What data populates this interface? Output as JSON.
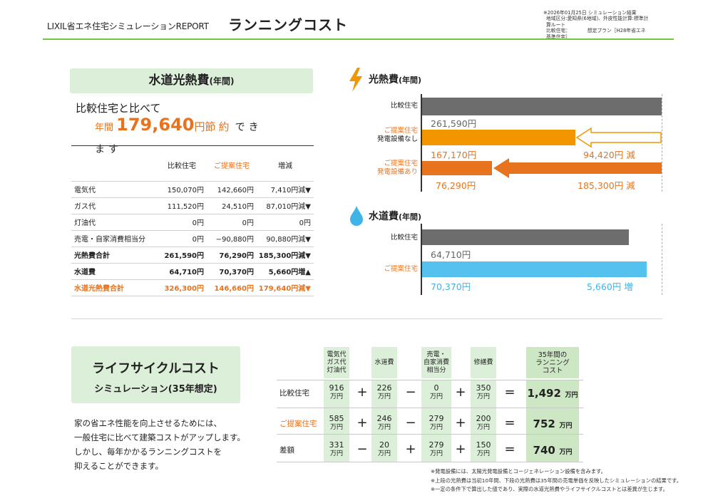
{
  "header": {
    "brand": "LIXIL省エネ住宅シミュレーションREPORT",
    "title": "ランニングコスト",
    "meta_lines": [
      "※2026年01月25日 シミュレーション結果",
      "地域区分:愛知県(6地域)、外皮性能計算:標準計",
      "算ルート",
      "比較住宅：　　　　想定プラン［H28年省エネ",
      "基準住宅］"
    ]
  },
  "utility": {
    "title": "水道光熱費",
    "title_suffix": "(年間)",
    "compare_text": "比較住宅と比べて",
    "annual_label": "年間",
    "saving_amount": "179,640",
    "saving_unit": "円",
    "saving_word": "節約",
    "can_text1": "でき",
    "can_text2": "ます",
    "table": {
      "headers": [
        "",
        "比較住宅",
        "ご提案住宅",
        "増減"
      ],
      "rows": [
        {
          "label": "電気代",
          "compare": "150,070円",
          "proposal": "142,660円",
          "diff": "7,410円減▼"
        },
        {
          "label": "ガス代",
          "compare": "111,520円",
          "proposal": "24,510円",
          "diff": "87,010円減▼"
        },
        {
          "label": "灯油代",
          "compare": "0円",
          "proposal": "0円",
          "diff": "0円"
        },
        {
          "label": "売電・自家消費相当分",
          "compare": "0円",
          "proposal": "−90,880円",
          "diff": "90,880円減▼"
        },
        {
          "label": "光熱費合計",
          "compare": "261,590円",
          "proposal": "76,290円",
          "diff": "185,300円減▼"
        },
        {
          "label": "水道費",
          "compare": "64,710円",
          "proposal": "70,370円",
          "diff": "5,660円増▲"
        },
        {
          "label": "水道光熱費合計",
          "compare": "326,300円",
          "proposal": "146,660円",
          "diff": "179,640円減▼"
        }
      ]
    }
  },
  "energy_chart": {
    "title": "光熱費",
    "title_suffix": "(年間)",
    "icon": "lightning-icon",
    "bars": [
      {
        "label": [
          "比較住宅"
        ],
        "value": 261590,
        "value_text": "261,590円",
        "color": "#6d6d6d",
        "style": "compare"
      },
      {
        "label": [
          "ご提案住宅",
          "発電設備なし"
        ],
        "value": 167170,
        "value_text": "167,170円",
        "color": "#f29600",
        "diff_text": "94,420円 減",
        "style": "prop1"
      },
      {
        "label": [
          "ご提案住宅",
          "発電設備あり"
        ],
        "value": 76290,
        "value_text": "76,290円",
        "color": "#e8731e",
        "diff_text": "185,300円 減",
        "style": "prop2"
      }
    ]
  },
  "water_chart": {
    "title": "水道費",
    "title_suffix": "(年間)",
    "icon": "water-drop-icon",
    "bars": [
      {
        "label": [
          "比較住宅"
        ],
        "value": 64710,
        "value_text": "64,710円",
        "color": "#6d6d6d"
      },
      {
        "label": [
          "ご提案住宅"
        ],
        "value": 70370,
        "value_text": "70,370円",
        "color": "#55c1ee",
        "diff_text": "5,660円 増"
      }
    ]
  },
  "lifecycle": {
    "title": "ライフサイクルコスト",
    "subtitle": "シミュレーション(35年想定)",
    "description": [
      "家の省エネ性能を向上させるためには、",
      "一般住宅に比べて建築コストがアップします。",
      "しかし、毎年かかるランニングコストを",
      "抑えることができます。"
    ],
    "col_headers": [
      [
        "電気代",
        "ガス代",
        "灯油代"
      ],
      [
        "水道費"
      ],
      [
        "売電・",
        "自家消費",
        "相当分"
      ],
      [
        "修繕費"
      ],
      [
        "35年間の",
        "ランニング",
        "コスト"
      ]
    ],
    "unit": "万円",
    "rows": [
      {
        "label": "比較住宅",
        "values": [
          "916",
          "226",
          "0",
          "350"
        ],
        "ops": [
          "+",
          "−",
          "+",
          "="
        ],
        "total": "1,492"
      },
      {
        "label": "ご提案住宅",
        "values": [
          "585",
          "246",
          "279",
          "200"
        ],
        "ops": [
          "+",
          "−",
          "+",
          "="
        ],
        "total": "752"
      },
      {
        "label": "差額",
        "values": [
          "331",
          "20",
          "279",
          "150"
        ],
        "ops": [
          "−",
          "+",
          "+",
          "="
        ],
        "total": "740"
      }
    ]
  },
  "notes": [
    "※発電設備には、太陽光発電設備とコージェネレーション設備を含みます。",
    "※上段の光熱費は当初10年間、下段の光熱費は35年間の売電単価を反映したシミュレーションの結果です。",
    "※一定の条件下で算出した値であり、実際の水道光熱費やライフサイクルコストとは差異が生じます。"
  ]
}
